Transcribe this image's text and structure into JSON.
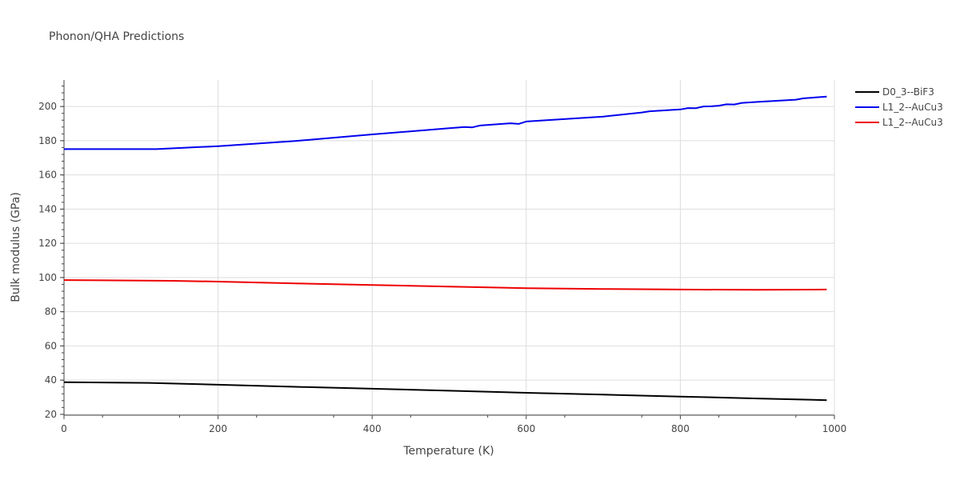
{
  "chart_data": {
    "type": "line",
    "title": "Phonon/QHA Predictions",
    "xlabel": "Temperature (K)",
    "ylabel": "Bulk modulus (GPa)",
    "xlim": [
      0,
      1000
    ],
    "ylim": [
      19.5,
      215.5
    ],
    "x_ticks": [
      0,
      200,
      400,
      600,
      800,
      1000
    ],
    "y_ticks": [
      20,
      40,
      60,
      80,
      100,
      120,
      140,
      160,
      180,
      200
    ],
    "grid": true,
    "legend_position": "top-right",
    "series": [
      {
        "name": "D0_3--BiF3",
        "color": "#000000",
        "points": [
          [
            0,
            38.8
          ],
          [
            110,
            38.4
          ],
          [
            200,
            37.3
          ],
          [
            300,
            36.1
          ],
          [
            400,
            35.0
          ],
          [
            500,
            33.8
          ],
          [
            600,
            32.6
          ],
          [
            700,
            31.5
          ],
          [
            800,
            30.4
          ],
          [
            900,
            29.3
          ],
          [
            990,
            28.3
          ]
        ]
      },
      {
        "name": "L1_2--AuCu3",
        "color": "#0000ee",
        "points": [
          [
            0,
            175.1
          ],
          [
            120,
            175.1
          ],
          [
            200,
            176.8
          ],
          [
            300,
            179.8
          ],
          [
            400,
            183.7
          ],
          [
            500,
            187.3
          ],
          [
            520,
            188.0
          ],
          [
            530,
            187.8
          ],
          [
            540,
            188.9
          ],
          [
            580,
            190.2
          ],
          [
            590,
            189.8
          ],
          [
            600,
            191.2
          ],
          [
            700,
            194.1
          ],
          [
            750,
            196.5
          ],
          [
            760,
            197.2
          ],
          [
            800,
            198.3
          ],
          [
            810,
            199.1
          ],
          [
            820,
            199.0
          ],
          [
            830,
            200.0
          ],
          [
            840,
            200.1
          ],
          [
            850,
            200.5
          ],
          [
            860,
            201.3
          ],
          [
            870,
            201.2
          ],
          [
            880,
            202.1
          ],
          [
            900,
            202.7
          ],
          [
            950,
            204.0
          ],
          [
            960,
            204.8
          ],
          [
            990,
            205.8
          ]
        ]
      },
      {
        "name": "L1_2--AuCu3",
        "color": "#ee0000",
        "points": [
          [
            0,
            98.5
          ],
          [
            140,
            98.1
          ],
          [
            200,
            97.6
          ],
          [
            300,
            96.6
          ],
          [
            400,
            95.6
          ],
          [
            500,
            94.7
          ],
          [
            600,
            93.8
          ],
          [
            700,
            93.3
          ],
          [
            800,
            93.0
          ],
          [
            900,
            92.8
          ],
          [
            990,
            93.0
          ]
        ]
      }
    ]
  }
}
